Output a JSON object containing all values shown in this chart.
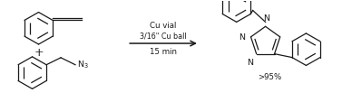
{
  "background_color": "#ffffff",
  "arrow_text_line1": "Cu vial",
  "arrow_text_line2": "3/16\" Cu ball",
  "arrow_text_line3": "15 min",
  "yield_text": ">95%",
  "plus_sign": "+",
  "figsize": [
    3.77,
    1.03
  ],
  "dpi": 100,
  "line_color": "#1a1a1a",
  "line_width": 0.9,
  "text_fontsize": 6.2,
  "small_fontsize": 5.8,
  "label_fontsize": 6.8
}
